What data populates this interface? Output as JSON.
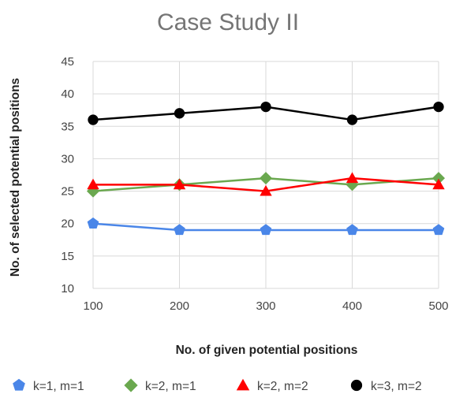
{
  "chart_data": {
    "type": "line",
    "title": "Case Study II",
    "xlabel": "No. of given potential positions",
    "ylabel": "No. of selected potential positions",
    "x": [
      100,
      200,
      300,
      400,
      500
    ],
    "x_tick_labels": [
      "100",
      "200",
      "300",
      "400",
      "500"
    ],
    "ylim": [
      10,
      45
    ],
    "y_ticks": [
      10,
      15,
      20,
      25,
      30,
      35,
      40,
      45
    ],
    "y_tick_labels": [
      "10",
      "15",
      "20",
      "25",
      "30",
      "35",
      "40",
      "45"
    ],
    "grid": true,
    "legend_position": "bottom",
    "series": [
      {
        "name": "k=1, m=1",
        "values": [
          20,
          19,
          19,
          19,
          19
        ],
        "color": "#4a86e8",
        "marker": "pentagon"
      },
      {
        "name": "k=2, m=1",
        "values": [
          25,
          26,
          27,
          26,
          27
        ],
        "color": "#6aa84f",
        "marker": "diamond"
      },
      {
        "name": "k=2, m=2",
        "values": [
          26,
          26,
          25,
          27,
          26
        ],
        "color": "#ff0000",
        "marker": "triangle"
      },
      {
        "name": "k=3, m=2",
        "values": [
          36,
          37,
          38,
          36,
          38
        ],
        "color": "#000000",
        "marker": "circle"
      }
    ]
  }
}
